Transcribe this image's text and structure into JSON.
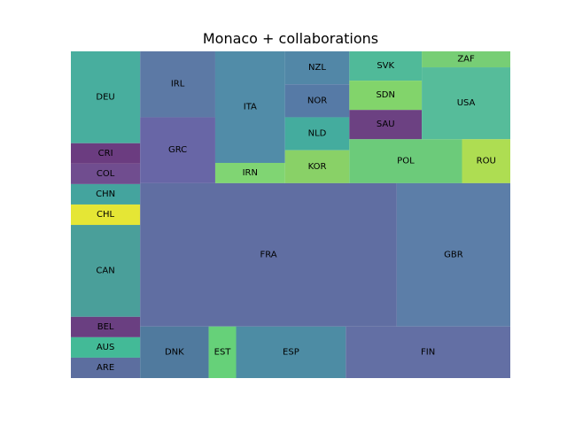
{
  "chart_data": {
    "type": "treemap",
    "title": "Monaco + collaborations",
    "palette": "viridis",
    "items": [
      {
        "label": "FRA",
        "value": 52,
        "color": "#4f5e98"
      },
      {
        "label": "GBR",
        "value": 23,
        "color": "#4a709f"
      },
      {
        "label": "FIN",
        "value": 12,
        "color": "#525f9a"
      },
      {
        "label": "ITA",
        "value": 11,
        "color": "#3e7f9f"
      },
      {
        "label": "DEU",
        "value": 9,
        "color": "#34a593"
      },
      {
        "label": "CAN",
        "value": 9,
        "color": "#36958f"
      },
      {
        "label": "USA",
        "value": 9,
        "color": "#44b58f"
      },
      {
        "label": "ESP",
        "value": 8,
        "color": "#3a7f9a"
      },
      {
        "label": "IRL",
        "value": 7,
        "color": "#4a6a9b"
      },
      {
        "label": "GRC",
        "value": 7,
        "color": "#58559c"
      },
      {
        "label": "POL",
        "value": 7,
        "color": "#5cc56c"
      },
      {
        "label": "DNK",
        "value": 5,
        "color": "#3d6b94"
      },
      {
        "label": "NZL",
        "value": 3,
        "color": "#3f7a9d"
      },
      {
        "label": "NOR",
        "value": 3,
        "color": "#446c9c"
      },
      {
        "label": "NLD",
        "value": 3,
        "color": "#30a394"
      },
      {
        "label": "KOR",
        "value": 3,
        "color": "#7ccc56"
      },
      {
        "label": "SVK",
        "value": 3,
        "color": "#3db28e"
      },
      {
        "label": "SDN",
        "value": 3,
        "color": "#74cf5b"
      },
      {
        "label": "SAU",
        "value": 3,
        "color": "#5c2c74"
      },
      {
        "label": "ROU",
        "value": 3,
        "color": "#a5d93f"
      },
      {
        "label": "IRN",
        "value": 2,
        "color": "#72d064"
      },
      {
        "label": "ZAF",
        "value": 2,
        "color": "#68c966"
      },
      {
        "label": "CRI",
        "value": 2,
        "color": "#5b2772"
      },
      {
        "label": "COL",
        "value": 2,
        "color": "#603a83"
      },
      {
        "label": "CHN",
        "value": 2,
        "color": "#309a93"
      },
      {
        "label": "CHL",
        "value": 2,
        "color": "#e2e31f"
      },
      {
        "label": "BEL",
        "value": 2,
        "color": "#5a2a73"
      },
      {
        "label": "AUS",
        "value": 2,
        "color": "#2fb28c"
      },
      {
        "label": "ARE",
        "value": 2,
        "color": "#4a5e95"
      },
      {
        "label": "EST",
        "value": 2,
        "color": "#55cc6a"
      }
    ]
  }
}
